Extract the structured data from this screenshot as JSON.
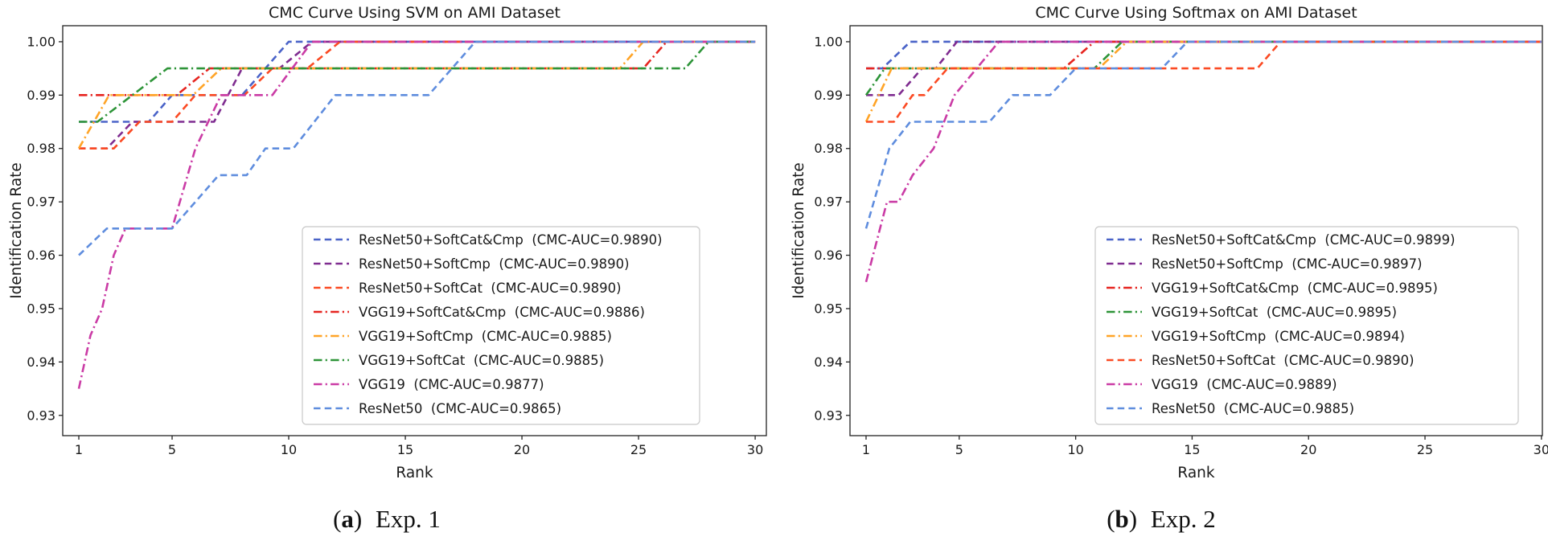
{
  "colors": {
    "text": "#1a1a1a",
    "spine": "#222222",
    "legend_border": "#c8c8c8",
    "legend_fill": "#ffffff"
  },
  "chart_data": [
    {
      "type": "line",
      "title": "CMC Curve Using SVM on AMI Dataset",
      "xlabel": "Rank",
      "ylabel": "Identification Rate",
      "xlim": [
        0.31,
        30.48
      ],
      "ylim": [
        0.9262,
        1.003
      ],
      "xticks": [
        1,
        5,
        10,
        15,
        20,
        25,
        30
      ],
      "yticks": [
        "1.00",
        "0.99",
        "0.98",
        "0.97",
        "0.96",
        "0.95",
        "0.94",
        "0.93"
      ],
      "grid": false,
      "legend_position": "lower right",
      "legend_auc_prefix": "(CMC-AUC=",
      "legend_auc_suffix": ")",
      "caption": {
        "open": "(",
        "letter": "a",
        "close": ")",
        "label": "Exp. 1"
      },
      "series": [
        {
          "name": "ResNet50+SoftCat&Cmp",
          "auc": "0.9890",
          "color": "#4a63c8",
          "dash": "dashed",
          "points": [
            [
              1,
              0.985
            ],
            [
              4,
              0.985
            ],
            [
              5,
              0.99
            ],
            [
              8,
              0.99
            ],
            [
              10,
              1.0
            ],
            [
              30,
              1.0
            ]
          ]
        },
        {
          "name": "ResNet50+SoftCmp",
          "auc": "0.9890",
          "color": "#7f2c90",
          "dash": "dashed",
          "points": [
            [
              1,
              0.98
            ],
            [
              2.2,
              0.98
            ],
            [
              3.3,
              0.985
            ],
            [
              6.8,
              0.985
            ],
            [
              8,
              0.995
            ],
            [
              9.6,
              0.995
            ],
            [
              11,
              1.0
            ],
            [
              30,
              1.0
            ]
          ]
        },
        {
          "name": "ResNet50+SoftCat",
          "auc": "0.9890",
          "color": "#fb4a23",
          "dash": "dashed",
          "points": [
            [
              1,
              0.98
            ],
            [
              2.5,
              0.98
            ],
            [
              3.6,
              0.985
            ],
            [
              5,
              0.985
            ],
            [
              6,
              0.99
            ],
            [
              8.1,
              0.99
            ],
            [
              9.3,
              0.995
            ],
            [
              10.8,
              0.995
            ],
            [
              12.2,
              1.0
            ],
            [
              30,
              1.0
            ]
          ]
        },
        {
          "name": "VGG19+SoftCat&Cmp",
          "auc": "0.9886",
          "color": "#e62520",
          "dash": "dashdot",
          "points": [
            [
              1,
              0.99
            ],
            [
              5.2,
              0.99
            ],
            [
              6.6,
              0.995
            ],
            [
              25.2,
              0.995
            ],
            [
              26.2,
              1.0
            ],
            [
              30,
              1.0
            ]
          ]
        },
        {
          "name": "VGG19+SoftCmp",
          "auc": "0.9885",
          "color": "#ffa427",
          "dash": "dashdot",
          "points": [
            [
              1,
              0.98
            ],
            [
              2.3,
              0.99
            ],
            [
              5.9,
              0.99
            ],
            [
              7.1,
              0.995
            ],
            [
              24.2,
              0.995
            ],
            [
              25.2,
              1.0
            ],
            [
              30,
              1.0
            ]
          ]
        },
        {
          "name": "VGG19+SoftCat",
          "auc": "0.9885",
          "color": "#2d9438",
          "dash": "dashdot",
          "points": [
            [
              1,
              0.985
            ],
            [
              1.8,
              0.985
            ],
            [
              4.8,
              0.995
            ],
            [
              27,
              0.995
            ],
            [
              28,
              1.0
            ],
            [
              30,
              1.0
            ]
          ]
        },
        {
          "name": "VGG19",
          "auc": "0.9877",
          "color": "#ca3ba5",
          "dash": "dashdot",
          "points": [
            [
              1,
              0.935
            ],
            [
              1.5,
              0.945
            ],
            [
              2,
              0.95
            ],
            [
              2.5,
              0.96
            ],
            [
              3,
              0.965
            ],
            [
              5,
              0.965
            ],
            [
              6,
              0.98
            ],
            [
              7.1,
              0.99
            ],
            [
              9.3,
              0.99
            ],
            [
              11,
              1.0
            ],
            [
              30,
              1.0
            ]
          ]
        },
        {
          "name": "ResNet50",
          "auc": "0.9865",
          "color": "#5f8dde",
          "dash": "dashed",
          "points": [
            [
              1,
              0.96
            ],
            [
              2.2,
              0.965
            ],
            [
              5,
              0.965
            ],
            [
              7,
              0.975
            ],
            [
              8.2,
              0.975
            ],
            [
              9,
              0.98
            ],
            [
              10.2,
              0.98
            ],
            [
              12,
              0.99
            ],
            [
              16,
              0.99
            ],
            [
              18,
              1.0
            ],
            [
              30,
              1.0
            ]
          ]
        }
      ]
    },
    {
      "type": "line",
      "title": "CMC Curve Using Softmax on AMI Dataset",
      "xlabel": "Rank",
      "ylabel": "Identification Rate",
      "xlim": [
        0.31,
        30.04
      ],
      "ylim": [
        0.9262,
        1.003
      ],
      "xticks": [
        1,
        5,
        10,
        15,
        20,
        25,
        30
      ],
      "yticks": [
        "1.00",
        "0.99",
        "0.98",
        "0.97",
        "0.96",
        "0.95",
        "0.94",
        "0.93"
      ],
      "grid": false,
      "legend_position": "lower right",
      "legend_auc_prefix": "(CMC-AUC=",
      "legend_auc_suffix": ")",
      "caption": {
        "open": "(",
        "letter": "b",
        "close": ")",
        "label": "Exp. 2"
      },
      "series": [
        {
          "name": "ResNet50+SoftCat&Cmp",
          "auc": "0.9899",
          "color": "#4a63c8",
          "dash": "dashed",
          "points": [
            [
              1,
              0.995
            ],
            [
              1.7,
              0.995
            ],
            [
              2.9,
              1.0
            ],
            [
              30,
              1.0
            ]
          ]
        },
        {
          "name": "ResNet50+SoftCmp",
          "auc": "0.9897",
          "color": "#7f2c90",
          "dash": "dashed",
          "points": [
            [
              1,
              0.99
            ],
            [
              2.4,
              0.99
            ],
            [
              3.4,
              0.995
            ],
            [
              4,
              0.995
            ],
            [
              4.9,
              1.0
            ],
            [
              30,
              1.0
            ]
          ]
        },
        {
          "name": "VGG19+SoftCat&Cmp",
          "auc": "0.9895",
          "color": "#e62520",
          "dash": "dashdot",
          "points": [
            [
              1,
              0.995
            ],
            [
              9.5,
              0.995
            ],
            [
              10.8,
              1.0
            ],
            [
              30,
              1.0
            ]
          ]
        },
        {
          "name": "VGG19+SoftCat",
          "auc": "0.9895",
          "color": "#2d9438",
          "dash": "dashdot",
          "points": [
            [
              1,
              0.99
            ],
            [
              1.8,
              0.995
            ],
            [
              10.8,
              0.995
            ],
            [
              12,
              1.0
            ],
            [
              30,
              1.0
            ]
          ]
        },
        {
          "name": "VGG19+SoftCmp",
          "auc": "0.9894",
          "color": "#ffa427",
          "dash": "dashdot",
          "points": [
            [
              1,
              0.985
            ],
            [
              2.1,
              0.995
            ],
            [
              11,
              0.995
            ],
            [
              12.2,
              1.0
            ],
            [
              30,
              1.0
            ]
          ]
        },
        {
          "name": "ResNet50+SoftCat",
          "auc": "0.9890",
          "color": "#fb4a23",
          "dash": "dashed",
          "points": [
            [
              1,
              0.985
            ],
            [
              2.2,
              0.985
            ],
            [
              3,
              0.99
            ],
            [
              3.5,
              0.99
            ],
            [
              4.5,
              0.995
            ],
            [
              17.8,
              0.995
            ],
            [
              18.8,
              1.0
            ],
            [
              30,
              1.0
            ]
          ]
        },
        {
          "name": "VGG19",
          "auc": "0.9889",
          "color": "#ca3ba5",
          "dash": "dashdot",
          "points": [
            [
              1,
              0.955
            ],
            [
              1.9,
              0.97
            ],
            [
              2.4,
              0.97
            ],
            [
              3,
              0.975
            ],
            [
              3.9,
              0.98
            ],
            [
              4.8,
              0.99
            ],
            [
              6.7,
              1.0
            ],
            [
              30,
              1.0
            ]
          ]
        },
        {
          "name": "ResNet50",
          "auc": "0.9885",
          "color": "#5f8dde",
          "dash": "dashed",
          "points": [
            [
              1,
              0.965
            ],
            [
              2,
              0.98
            ],
            [
              2.9,
              0.985
            ],
            [
              6.3,
              0.985
            ],
            [
              7.3,
              0.99
            ],
            [
              8.9,
              0.99
            ],
            [
              10,
              0.995
            ],
            [
              13.7,
              0.995
            ],
            [
              14.8,
              1.0
            ],
            [
              30,
              1.0
            ]
          ]
        }
      ]
    }
  ]
}
